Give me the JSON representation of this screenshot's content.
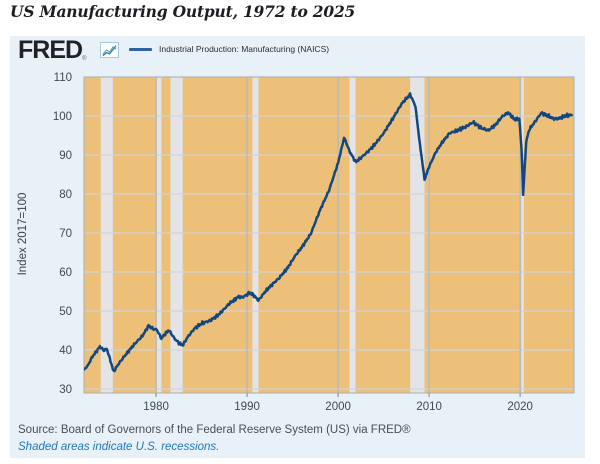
{
  "page": {
    "title": "US Manufacturing Output, 1972 to 2025"
  },
  "header": {
    "logo": "FRED",
    "registered": "®",
    "icon": "fred-line-chart-icon",
    "legend": {
      "label": "Industrial Production: Manufacturing (NAICS)",
      "color": "#2e62a3"
    }
  },
  "footer": {
    "source": "Source: Board of Governors of the Federal Reserve System (US) via FRED®",
    "note": "Shaded areas indicate U.S. recessions."
  },
  "chart_data": {
    "type": "line",
    "title": "US Manufacturing Output, 1972 to 2025",
    "xlabel": "",
    "ylabel": "Index 2017=100",
    "xlim": [
      1972.08,
      2025.92
    ],
    "ylim": [
      29,
      110
    ],
    "yticks": [
      30,
      40,
      50,
      60,
      70,
      80,
      90,
      100,
      110
    ],
    "xticks": [
      1980,
      1990,
      2000,
      2010,
      2020
    ],
    "grid": true,
    "legend_position": "top-left",
    "colors": {
      "line": "#15477f",
      "plot_bg": "#edc07a",
      "recession_band": "#e2e4e7",
      "grid_h": "#d2d4d5",
      "grid_v": "#b4bac0",
      "plot_border": "#a9b0b6",
      "card_bg": "#e8f1f8",
      "tick_text": "#45484b"
    },
    "recessions": [
      [
        1973.92,
        1975.25
      ],
      [
        1980.08,
        1980.58
      ],
      [
        1981.58,
        1982.92
      ],
      [
        1990.58,
        1991.25
      ],
      [
        2001.25,
        2001.92
      ],
      [
        2007.92,
        2009.5
      ],
      [
        2020.13,
        2020.37
      ]
    ],
    "series": [
      {
        "name": "Industrial Production: Manufacturing (NAICS)",
        "points": [
          [
            1972.08,
            35.0
          ],
          [
            1972.5,
            36.0
          ],
          [
            1973.0,
            38.3
          ],
          [
            1973.5,
            39.8
          ],
          [
            1973.83,
            40.9
          ],
          [
            1974.25,
            39.9
          ],
          [
            1974.58,
            40.3
          ],
          [
            1974.92,
            37.8
          ],
          [
            1975.33,
            34.4
          ],
          [
            1975.75,
            36.0
          ],
          [
            1976.25,
            37.6
          ],
          [
            1977.0,
            39.8
          ],
          [
            1977.75,
            41.8
          ],
          [
            1978.5,
            43.6
          ],
          [
            1979.17,
            46.2
          ],
          [
            1979.67,
            45.4
          ],
          [
            1980.08,
            45.2
          ],
          [
            1980.58,
            43.0
          ],
          [
            1981.0,
            44.2
          ],
          [
            1981.42,
            45.1
          ],
          [
            1982.0,
            43.0
          ],
          [
            1982.5,
            41.8
          ],
          [
            1982.92,
            41.2
          ],
          [
            1983.5,
            43.4
          ],
          [
            1984.25,
            45.6
          ],
          [
            1985.0,
            46.8
          ],
          [
            1986.0,
            47.6
          ],
          [
            1987.0,
            49.3
          ],
          [
            1988.0,
            51.8
          ],
          [
            1989.0,
            53.6
          ],
          [
            1989.5,
            53.5
          ],
          [
            1990.33,
            54.7
          ],
          [
            1990.75,
            54.0
          ],
          [
            1991.25,
            52.7
          ],
          [
            1992.0,
            55.0
          ],
          [
            1992.75,
            56.8
          ],
          [
            1993.5,
            58.4
          ],
          [
            1994.5,
            61.2
          ],
          [
            1995.33,
            64.3
          ],
          [
            1996.0,
            66.3
          ],
          [
            1997.0,
            69.8
          ],
          [
            1998.0,
            75.8
          ],
          [
            1999.0,
            80.9
          ],
          [
            2000.0,
            88.0
          ],
          [
            2000.67,
            94.5
          ],
          [
            2001.25,
            91.0
          ],
          [
            2001.92,
            88.2
          ],
          [
            2002.5,
            89.3
          ],
          [
            2003.25,
            90.8
          ],
          [
            2004.0,
            92.6
          ],
          [
            2005.0,
            95.6
          ],
          [
            2006.0,
            99.3
          ],
          [
            2007.0,
            103.2
          ],
          [
            2007.92,
            105.5
          ],
          [
            2008.5,
            102.5
          ],
          [
            2008.92,
            94.0
          ],
          [
            2009.5,
            83.7
          ],
          [
            2010.0,
            87.0
          ],
          [
            2010.75,
            90.8
          ],
          [
            2011.5,
            93.4
          ],
          [
            2012.25,
            95.6
          ],
          [
            2013.0,
            96.2
          ],
          [
            2014.0,
            97.2
          ],
          [
            2014.83,
            98.4
          ],
          [
            2015.75,
            96.9
          ],
          [
            2016.5,
            96.3
          ],
          [
            2017.25,
            97.6
          ],
          [
            2018.0,
            99.8
          ],
          [
            2018.67,
            100.9
          ],
          [
            2019.33,
            99.2
          ],
          [
            2019.92,
            99.3
          ],
          [
            2020.17,
            91.0
          ],
          [
            2020.33,
            79.8
          ],
          [
            2020.67,
            93.5
          ],
          [
            2021.0,
            96.5
          ],
          [
            2021.75,
            98.9
          ],
          [
            2022.33,
            100.8
          ],
          [
            2023.0,
            100.1
          ],
          [
            2023.67,
            99.3
          ],
          [
            2024.33,
            99.4
          ],
          [
            2025.0,
            100.1
          ],
          [
            2025.67,
            100.2
          ]
        ]
      }
    ]
  }
}
